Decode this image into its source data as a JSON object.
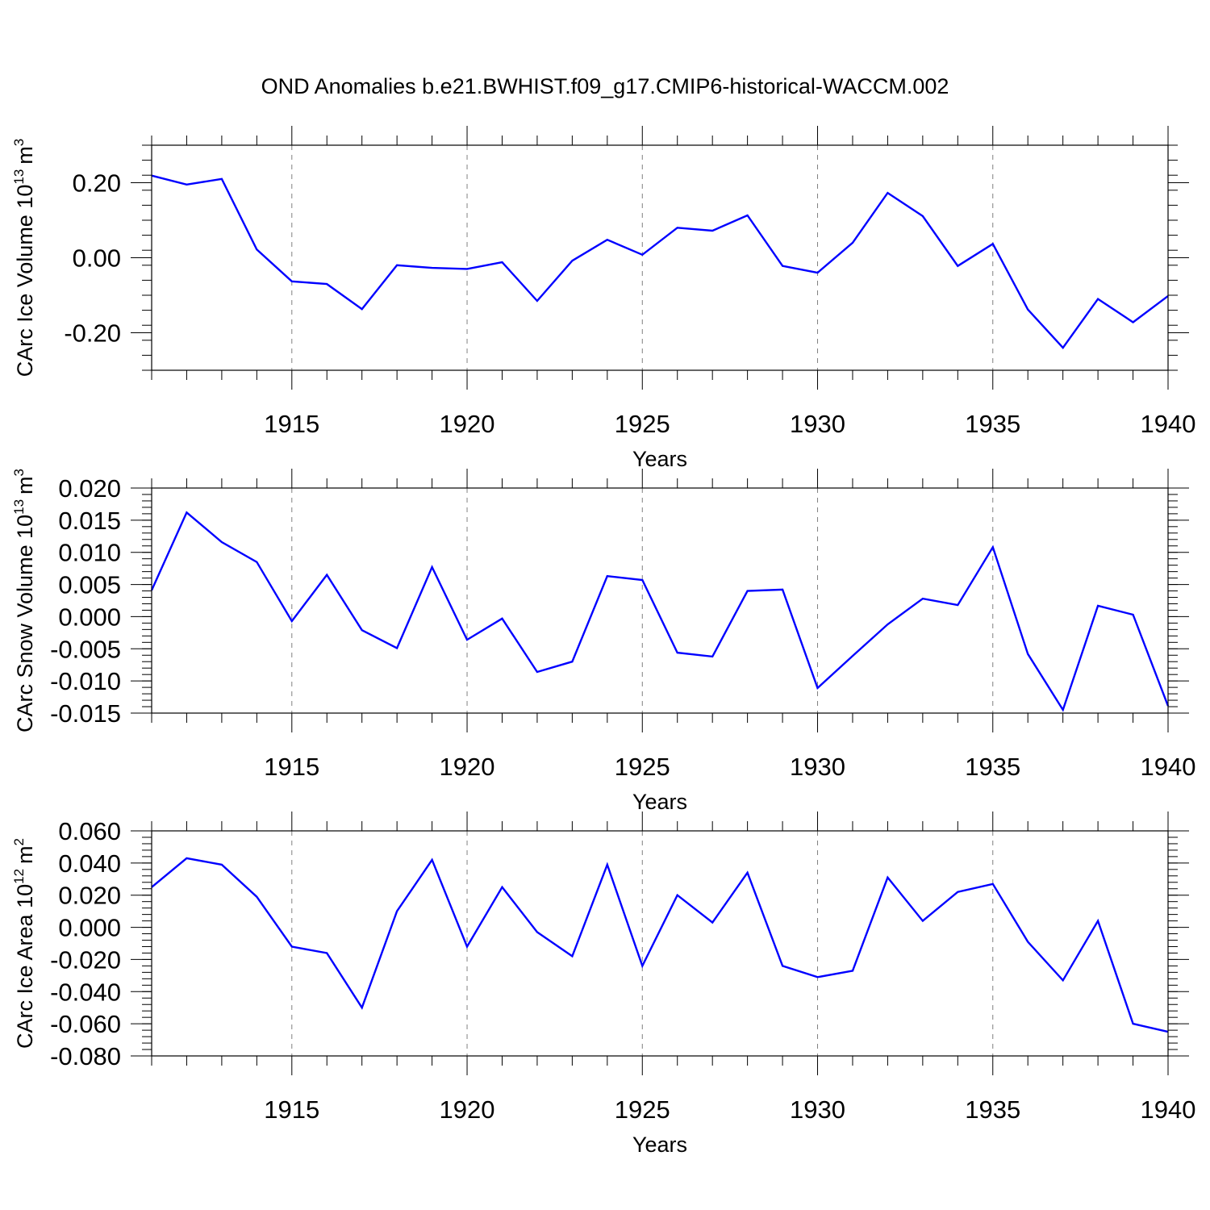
{
  "figure": {
    "title": "OND Anomalies b.e21.BWHIST.f09_g17.CMIP6-historical-WACCM.002",
    "line_color": "#0000ff",
    "grid_color": "#808080"
  },
  "chart_data": [
    {
      "type": "line",
      "title": "",
      "xlabel": "Years",
      "ylabel": "CArc Ice Volume 10",
      "ylabel_exp": "13",
      "ylabel_unit": "m",
      "ylabel_unit_exp": "3",
      "xlim": [
        1911,
        1940
      ],
      "ylim": [
        -0.3,
        0.3
      ],
      "x_ticks": [
        1915,
        1920,
        1925,
        1930,
        1935,
        1940
      ],
      "x_tick_labels": [
        "1915",
        "1920",
        "1925",
        "1930",
        "1935",
        "1940"
      ],
      "y_ticks": [
        0.2,
        0.0,
        -0.2
      ],
      "y_tick_labels": [
        "0.20",
        "0.00",
        "-0.20"
      ],
      "y_minor_step": 0.04,
      "x": [
        1911,
        1912,
        1913,
        1914,
        1915,
        1916,
        1917,
        1918,
        1919,
        1920,
        1921,
        1922,
        1923,
        1924,
        1925,
        1926,
        1927,
        1928,
        1929,
        1930,
        1931,
        1932,
        1933,
        1934,
        1935,
        1936,
        1937,
        1938,
        1939,
        1940
      ],
      "values": [
        0.219,
        0.195,
        0.21,
        0.022,
        -0.063,
        -0.07,
        -0.137,
        -0.02,
        -0.027,
        -0.03,
        -0.012,
        -0.115,
        -0.008,
        0.048,
        0.008,
        0.08,
        0.072,
        0.113,
        -0.022,
        -0.04,
        0.04,
        0.173,
        0.111,
        -0.022,
        0.037,
        -0.138,
        -0.24,
        -0.11,
        -0.172,
        -0.102
      ]
    },
    {
      "type": "line",
      "title": "",
      "xlabel": "Years",
      "ylabel": "CArc Snow Volume 10",
      "ylabel_exp": "13",
      "ylabel_unit": "m",
      "ylabel_unit_exp": "3",
      "xlim": [
        1911,
        1940
      ],
      "ylim": [
        -0.015,
        0.02
      ],
      "x_ticks": [
        1915,
        1920,
        1925,
        1930,
        1935,
        1940
      ],
      "x_tick_labels": [
        "1915",
        "1920",
        "1925",
        "1930",
        "1935",
        "1940"
      ],
      "y_ticks": [
        0.02,
        0.015,
        0.01,
        0.005,
        0.0,
        -0.005,
        -0.01,
        -0.015
      ],
      "y_tick_labels": [
        "0.020",
        "0.015",
        "0.010",
        "0.005",
        "0.000",
        "-0.005",
        "-0.010",
        "-0.015"
      ],
      "y_minor_step": 0.001,
      "x": [
        1911,
        1912,
        1913,
        1914,
        1915,
        1916,
        1917,
        1918,
        1919,
        1920,
        1921,
        1922,
        1923,
        1924,
        1925,
        1926,
        1927,
        1928,
        1929,
        1930,
        1931,
        1932,
        1933,
        1934,
        1935,
        1936,
        1937,
        1938,
        1939,
        1940
      ],
      "values": [
        0.0041,
        0.0162,
        0.0116,
        0.0085,
        -0.0007,
        0.0065,
        -0.0021,
        -0.0049,
        0.0077,
        -0.0036,
        -0.0003,
        -0.0086,
        -0.007,
        0.0063,
        0.0057,
        -0.0056,
        -0.0062,
        0.004,
        0.0042,
        -0.0111,
        -0.0061,
        -0.0012,
        0.0028,
        0.0018,
        0.0108,
        -0.0058,
        -0.0145,
        0.0017,
        0.0003,
        -0.0139
      ]
    },
    {
      "type": "line",
      "title": "",
      "xlabel": "Years",
      "ylabel": "CArc Ice Area 10",
      "ylabel_exp": "12",
      "ylabel_unit": "m",
      "ylabel_unit_exp": "2",
      "xlim": [
        1911,
        1940
      ],
      "ylim": [
        -0.08,
        0.06
      ],
      "x_ticks": [
        1915,
        1920,
        1925,
        1930,
        1935,
        1940
      ],
      "x_tick_labels": [
        "1915",
        "1920",
        "1925",
        "1930",
        "1935",
        "1940"
      ],
      "y_ticks": [
        0.06,
        0.04,
        0.02,
        0.0,
        -0.02,
        -0.04,
        -0.06,
        -0.08
      ],
      "y_tick_labels": [
        "0.060",
        "0.040",
        "0.020",
        "0.000",
        "-0.020",
        "-0.040",
        "-0.060",
        "-0.080"
      ],
      "y_minor_step": 0.004,
      "x": [
        1911,
        1912,
        1913,
        1914,
        1915,
        1916,
        1917,
        1918,
        1919,
        1920,
        1921,
        1922,
        1923,
        1924,
        1925,
        1926,
        1927,
        1928,
        1929,
        1930,
        1931,
        1932,
        1933,
        1934,
        1935,
        1936,
        1937,
        1938,
        1939,
        1940
      ],
      "values": [
        0.025,
        0.043,
        0.039,
        0.019,
        -0.012,
        -0.016,
        -0.05,
        0.01,
        0.042,
        -0.012,
        0.025,
        -0.003,
        -0.018,
        0.039,
        -0.024,
        0.02,
        0.003,
        0.034,
        -0.024,
        -0.031,
        -0.027,
        0.031,
        0.004,
        0.022,
        0.027,
        -0.009,
        -0.033,
        0.004,
        -0.06,
        -0.065
      ]
    }
  ]
}
